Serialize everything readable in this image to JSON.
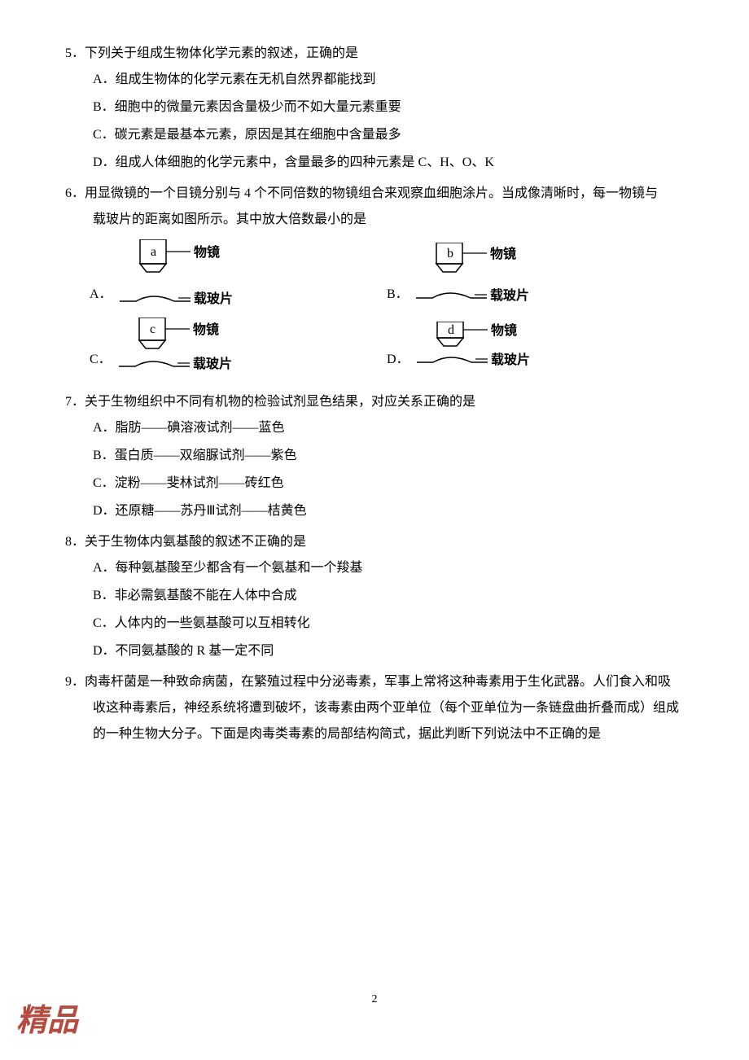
{
  "q5": {
    "text": "5．下列关于组成生物体化学元素的叙述，正确的是",
    "options": {
      "A": "A．组成生物体的化学元素在无机自然界都能找到",
      "B": "B．细胞中的微量元素因含量极少而不如大量元素重要",
      "C": "C．碳元素是最基本元素，原因是其在细胞中含量最多",
      "D": "D．组成人体细胞的化学元素中，含量最多的四种元素是 C、H、O、K"
    }
  },
  "q6": {
    "text": "6．用显微镜的一个目镜分别与 4 个不同倍数的物镜组合来观察血细胞涂片。当成像清晰时，每一物镜与",
    "text2": "载玻片的距离如图所示。其中放大倍数最小的是",
    "diagrams": [
      {
        "label": "A．",
        "letter": "a",
        "gap": 28,
        "lens_h": 40
      },
      {
        "label": "B．",
        "letter": "b",
        "gap": 24,
        "lens_h": 36
      },
      {
        "label": "C．",
        "letter": "c",
        "gap": 14,
        "lens_h": 38
      },
      {
        "label": "D．",
        "letter": "d",
        "gap": 12,
        "lens_h": 30
      }
    ],
    "label_lens": "物镜",
    "label_slide": "载玻片",
    "colors": {
      "stroke": "#000000",
      "fill": "#ffffff"
    }
  },
  "q7": {
    "text": "7．关于生物组织中不同有机物的检验试剂显色结果，对应关系正确的是",
    "options": {
      "A": "A．脂肪——碘溶液试剂——蓝色",
      "B": "B．蛋白质——双缩脲试剂——紫色",
      "C": "C．淀粉——斐林试剂——砖红色",
      "D": "D．还原糖——苏丹Ⅲ试剂——桔黄色"
    }
  },
  "q8": {
    "text": "8．关于生物体内氨基酸的叙述不正确的是",
    "options": {
      "A": "A．每种氨基酸至少都含有一个氨基和一个羧基",
      "B": "B．非必需氨基酸不能在人体中合成",
      "C": "C．人体内的一些氨基酸可以互相转化",
      "D": "D．不同氨基酸的 R 基一定不同"
    }
  },
  "q9": {
    "text": "9．肉毒杆菌是一种致命病菌，在繁殖过程中分泌毒素，军事上常将这种毒素用于生化武器。人们食入和吸",
    "text2": "收这种毒素后，神经系统将遭到破坏，该毒素由两个亚单位（每个亚单位为一条链盘曲折叠而成）组成",
    "text3": "的一种生物大分子。下面是肉毒类毒素的局部结构简式，据此判断下列说法中不正确的是"
  },
  "page_number": "2",
  "stamp_text": "精品"
}
